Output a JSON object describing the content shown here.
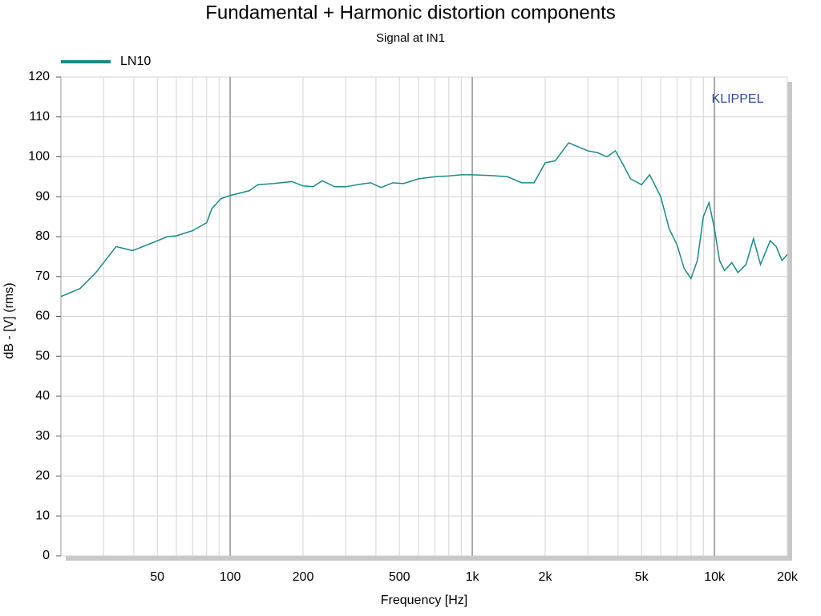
{
  "chart_data": {
    "type": "line",
    "title": "Fundamental + Harmonic distortion components",
    "subtitle": "Signal at IN1",
    "x_label": "Frequency [Hz]",
    "y_label": "dB - [V]  (rms)",
    "annotation": "KLIPPEL",
    "x_scale": "log",
    "grid": true,
    "xlim": [
      20,
      20000
    ],
    "ylim": [
      0,
      120
    ],
    "xticks": [
      50,
      100,
      200,
      500,
      {
        "value": 1000,
        "label": "1k"
      },
      {
        "value": 2000,
        "label": "2k"
      },
      {
        "value": 5000,
        "label": "5k"
      },
      {
        "value": 10000,
        "label": "10k"
      },
      {
        "value": 20000,
        "label": "20k"
      }
    ],
    "xminorticks": [
      30,
      40,
      60,
      70,
      80,
      90,
      300,
      400,
      600,
      700,
      800,
      900,
      3000,
      4000,
      6000,
      7000,
      8000,
      9000
    ],
    "yticks": [
      0,
      10,
      20,
      30,
      40,
      50,
      60,
      70,
      80,
      90,
      100,
      110,
      120
    ],
    "x": [
      20,
      24,
      27.9,
      33.8,
      39.5,
      48,
      55,
      60,
      70,
      80,
      84,
      91.5,
      100,
      120,
      130,
      150,
      180,
      200,
      220,
      240,
      270,
      300,
      350,
      380,
      420,
      470,
      520,
      600,
      700,
      800,
      900,
      1000,
      1200,
      1400,
      1600,
      1800,
      2000,
      2200,
      2500,
      3000,
      3300,
      3600,
      3900,
      4200,
      4500,
      5000,
      5400,
      6000,
      6500,
      7000,
      7500,
      8000,
      8500,
      9000,
      9500,
      10000,
      10500,
      11000,
      11800,
      12500,
      13500,
      14500,
      15500,
      17000,
      18000,
      19000,
      20000
    ],
    "series": [
      {
        "name": "LN10",
        "color": "#1a8a86",
        "values": [
          65,
          67,
          71,
          77.5,
          76.5,
          78.5,
          80,
          80.2,
          81.5,
          83.5,
          87,
          89.5,
          90.3,
          91.5,
          93,
          93.3,
          93.8,
          92.7,
          92.5,
          94,
          92.5,
          92.5,
          93.2,
          93.5,
          92.3,
          93.5,
          93.3,
          94.5,
          95,
          95.2,
          95.5,
          95.5,
          95.3,
          95,
          93.5,
          93.5,
          98.5,
          99,
          103.5,
          101.5,
          101,
          100,
          101.5,
          98,
          94.5,
          93,
          95.5,
          90,
          82,
          78,
          72,
          69.5,
          74,
          85,
          88.5,
          82,
          74,
          71.5,
          73.5,
          71,
          73,
          79.5,
          73,
          79,
          77.5,
          74,
          75.5
        ]
      }
    ],
    "legend": "top-left"
  }
}
